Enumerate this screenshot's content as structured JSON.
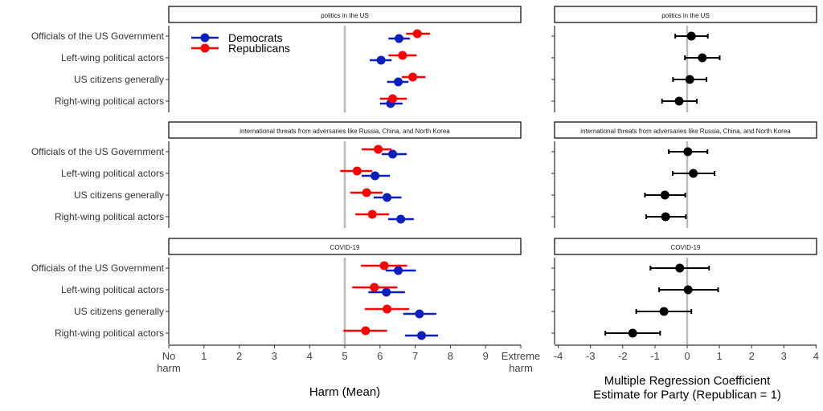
{
  "chart_data": [
    {
      "type": "scatter",
      "subtype": "dot-errorbar",
      "xlabel": "Harm (Mean)",
      "xlim": [
        0,
        10
      ],
      "xticks": [
        "No\nharm",
        "1",
        "2",
        "3",
        "4",
        "5",
        "6",
        "7",
        "8",
        "9",
        "Extreme\nharm"
      ],
      "reference_line": 5,
      "legend": {
        "placement": "top-left",
        "entries": [
          "Democrats",
          "Republicans"
        ]
      },
      "colors": {
        "Democrats": "#0a1fbe",
        "Republicans": "#ff0000"
      },
      "categories": [
        "Officials of the US Government",
        "Left-wing political actors",
        "US citizens generally",
        "Right-wing political actors"
      ],
      "panels": [
        {
          "title": "politics in the US",
          "series": [
            {
              "name": "Democrats",
              "values": [
                6.54,
                6.03,
                6.52,
                6.3
              ],
              "lo": [
                6.24,
                5.71,
                6.2,
                6.0
              ],
              "hi": [
                6.85,
                6.33,
                6.81,
                6.64
              ]
            },
            {
              "name": "Republicans",
              "values": [
                7.06,
                6.64,
                6.93,
                6.36
              ],
              "lo": [
                6.74,
                6.24,
                6.62,
                6.0
              ],
              "hi": [
                7.42,
                7.04,
                7.29,
                6.76
              ]
            }
          ]
        },
        {
          "title": "international threats from adversaries like Russia, China, and North Korea",
          "series": [
            {
              "name": "Democrats",
              "values": [
                6.36,
                5.86,
                6.2,
                6.59
              ],
              "lo": [
                6.05,
                5.48,
                5.82,
                6.23
              ],
              "hi": [
                6.76,
                6.28,
                6.61,
                6.96
              ]
            },
            {
              "name": "Republicans",
              "values": [
                5.95,
                5.35,
                5.62,
                5.78
              ],
              "lo": [
                5.48,
                4.87,
                5.15,
                5.3
              ],
              "hi": [
                6.33,
                5.78,
                6.07,
                6.26
              ]
            }
          ]
        },
        {
          "title": "COVID-19",
          "series": [
            {
              "name": "Democrats",
              "values": [
                6.52,
                6.18,
                7.12,
                7.18
              ],
              "lo": [
                6.16,
                5.67,
                6.66,
                6.71
              ],
              "hi": [
                7.02,
                6.71,
                7.6,
                7.65
              ]
            },
            {
              "name": "Republicans",
              "values": [
                6.12,
                5.84,
                6.2,
                5.59
              ],
              "lo": [
                5.46,
                5.21,
                5.57,
                4.96
              ],
              "hi": [
                6.77,
                6.49,
                6.83,
                6.2
              ]
            }
          ]
        }
      ]
    },
    {
      "type": "scatter",
      "subtype": "dot-errorbar",
      "xlabel": "Multiple Regression Coefficient\nEstimate for Party (Republican = 1)",
      "xlim": [
        -4,
        4
      ],
      "xticks": [
        "-4",
        "-3",
        "-2",
        "-1",
        "0",
        "1",
        "2",
        "3",
        "4"
      ],
      "reference_line": 0,
      "colors": {
        "point": "#000000"
      },
      "panels": [
        {
          "title": "politics in the US",
          "values": [
            0.13,
            0.47,
            0.08,
            -0.25
          ],
          "lo": [
            -0.37,
            -0.07,
            -0.44,
            -0.78
          ],
          "hi": [
            0.64,
            1.01,
            0.6,
            0.3
          ]
        },
        {
          "title": "international threats from adversaries like Russia, China, and North Korea",
          "values": [
            0.02,
            0.19,
            -0.69,
            -0.67
          ],
          "lo": [
            -0.57,
            -0.45,
            -1.31,
            -1.27
          ],
          "hi": [
            0.63,
            0.85,
            -0.06,
            -0.04
          ]
        },
        {
          "title": "COVID-19",
          "values": [
            -0.23,
            0.03,
            -0.72,
            -1.69
          ],
          "lo": [
            -1.14,
            -0.87,
            -1.58,
            -2.54
          ],
          "hi": [
            0.68,
            0.96,
            0.13,
            -0.84
          ]
        }
      ]
    }
  ]
}
